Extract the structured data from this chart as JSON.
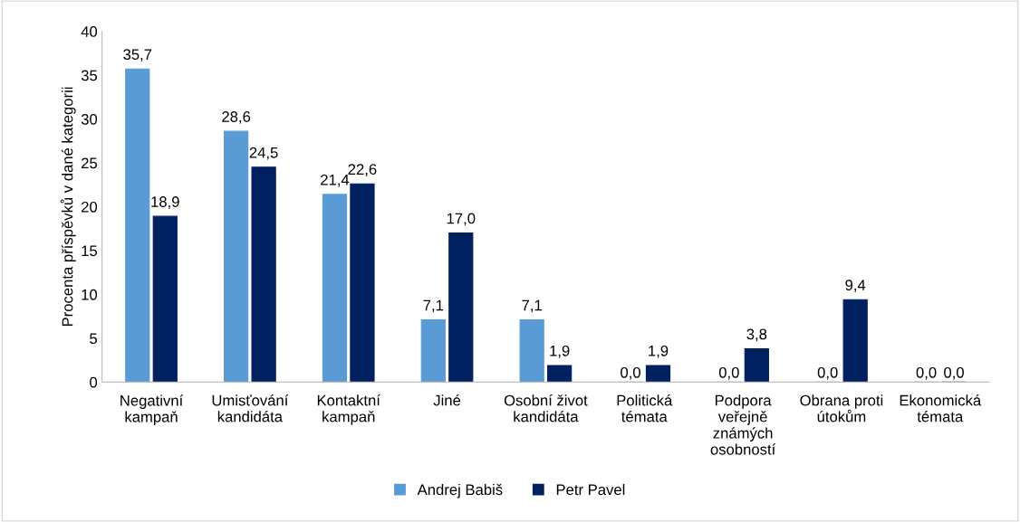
{
  "chart_data": {
    "type": "bar",
    "ylabel": "Procenta příspěvků v dané kategorii",
    "categories": [
      "Negativní\nkampaň",
      "Umisťování\nkandidáta",
      "Kontaktní\nkampaň",
      "Jiné",
      "Osobní život\nkandidáta",
      "Politická\ntémata",
      "Podpora\nveřejně\nznámých\nosobností",
      "Obrana proti\nútokům",
      "Ekonomická\ntémata"
    ],
    "series": [
      {
        "name": "Andrej Babiš",
        "color": "#5b9bd5",
        "values": [
          35.7,
          28.6,
          21.4,
          7.1,
          7.1,
          0.0,
          0.0,
          0.0,
          0.0
        ],
        "value_labels": [
          "35,7",
          "28,6",
          "21,4",
          "7,1",
          "7,1",
          "0,0",
          "0,0",
          "0,0",
          "0,0"
        ]
      },
      {
        "name": "Petr Pavel",
        "color": "#002060",
        "values": [
          18.9,
          24.5,
          22.6,
          17.0,
          1.9,
          1.9,
          3.8,
          9.4,
          0.0
        ],
        "value_labels": [
          "18,9",
          "24,5",
          "22,6",
          "17,0",
          "1,9",
          "1,9",
          "3,8",
          "9,4",
          "0,0"
        ]
      }
    ],
    "ylim": [
      0,
      40
    ],
    "yticks": [
      0,
      5,
      10,
      15,
      20,
      25,
      30,
      35,
      40
    ],
    "grid": false,
    "legend": "bottom"
  }
}
